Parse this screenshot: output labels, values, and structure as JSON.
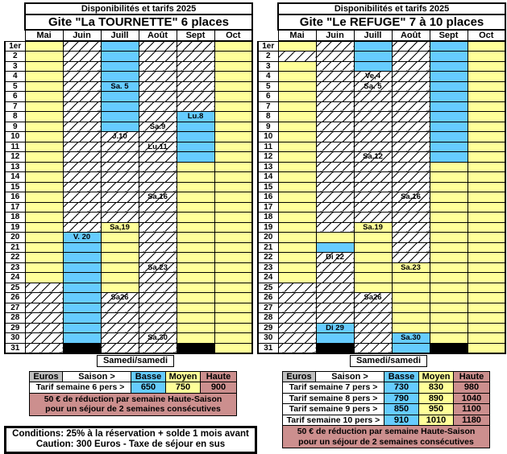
{
  "months": [
    "Mai",
    "Juin",
    "Juill",
    "Août",
    "Sept",
    "Oct"
  ],
  "day_labels": [
    "1er",
    "2",
    "3",
    "4",
    "5",
    "6",
    "7",
    "8",
    "9",
    "10",
    "11",
    "12",
    "13",
    "14",
    "15",
    "16",
    "17",
    "18",
    "19",
    "20",
    "21",
    "22",
    "23",
    "24",
    "25",
    "26",
    "27",
    "28",
    "29",
    "30",
    "31"
  ],
  "legend": {
    "samedi_label": "Samedi/samedi"
  },
  "colors": {
    "yellow": "#FFFF99",
    "blue": "#66CCFF",
    "rose": "#CC8F8E",
    "gray": "#C0C0C0",
    "black": "#000000"
  },
  "panels": [
    {
      "title": "Disponibilités et tarifs 2025",
      "subtitle": "Gite \"La TOURNETTE\" 6 places",
      "footer_label": "Samedi/samedi",
      "columns": {
        "Mai": [
          "Y",
          "Y",
          "Y",
          "Y",
          "Y",
          "Y",
          "Y",
          "Y",
          "Y",
          "Y",
          "Y",
          "Y",
          "Y",
          "Y",
          "Y",
          "Y",
          "Y",
          "Y",
          "Y",
          "Y",
          "Y",
          "Y",
          "Y",
          "Y",
          "H",
          "H",
          "H",
          "H",
          "H",
          "H",
          "H"
        ],
        "Juin": [
          "H",
          "H",
          "H",
          "H",
          "H",
          "H",
          "H",
          "H",
          "H",
          "H",
          "H",
          "H",
          "H",
          "H",
          "H",
          "H",
          "H",
          "H",
          "H",
          "B|V. 20",
          "B",
          "B",
          "B",
          "B",
          "B",
          "B",
          "B",
          "B",
          "B",
          "B",
          "K"
        ],
        "Juill": [
          "B",
          "B",
          "B",
          "B",
          "B|Sa. 5",
          "B",
          "B",
          "B",
          "B",
          "H|J.10",
          "H",
          "H",
          "H",
          "H",
          "H",
          "H",
          "H",
          "H",
          "Y|Sa,19",
          "Y",
          "Y",
          "Y",
          "Y",
          "Y",
          "Y",
          "H|Sa26",
          "H",
          "H",
          "H",
          "H",
          "H"
        ],
        "Août": [
          "H",
          "H",
          "H",
          "H",
          "H",
          "H",
          "H",
          "H",
          "H|Sa.9",
          "H",
          "H|Lu.11",
          "H",
          "H",
          "H",
          "H",
          "H|Sa.16",
          "H",
          "H",
          "H",
          "H",
          "H",
          "H",
          "H|Sa.23",
          "H",
          "H",
          "H",
          "H",
          "H",
          "H",
          "H|Sa.30",
          "H"
        ],
        "Sept": [
          "H",
          "H",
          "H",
          "H",
          "H",
          "H",
          "H",
          "B|Lu.8",
          "B",
          "B",
          "B",
          "B",
          "Y",
          "Y",
          "Y",
          "Y",
          "Y",
          "Y",
          "Y",
          "Y",
          "Y",
          "Y",
          "Y",
          "Y",
          "Y",
          "Y",
          "Y",
          "Y",
          "Y",
          "Y",
          "K"
        ],
        "Oct": [
          "Y",
          "Y",
          "Y",
          "Y",
          "Y",
          "Y",
          "Y",
          "Y",
          "Y",
          "Y",
          "Y",
          "Y",
          "Y",
          "Y",
          "Y",
          "Y",
          "Y",
          "Y",
          "Y",
          "Y",
          "Y",
          "Y",
          "Y",
          "Y",
          "Y",
          "Y",
          "Y",
          "Y",
          "Y",
          "Y",
          "Y"
        ]
      },
      "pricing": {
        "euros_label": "Euros",
        "saison_label": "Saison >",
        "season_headers": [
          "Basse",
          "Moyen",
          "Haute"
        ],
        "rows": [
          {
            "label": "Tarif semaine 6 pers >",
            "values": [
              650,
              750,
              900
            ]
          }
        ],
        "note": "50 € de réduction par semaine Haute-Saison pour un séjour de 2 semaines consécutives"
      }
    },
    {
      "title": "Disponibilités et tarifs 2025",
      "subtitle": "Gite \"Le REFUGE\" 7 à 10 places",
      "footer_label": "Samedi/samedi",
      "columns": {
        "Mai": [
          "Y",
          "H",
          "Y",
          "Y",
          "Y",
          "Y",
          "Y",
          "Y",
          "Y",
          "Y",
          "Y",
          "Y",
          "Y",
          "Y",
          "Y",
          "Y",
          "Y",
          "Y",
          "Y",
          "Y",
          "Y",
          "Y",
          "Y",
          "Y",
          "H",
          "H",
          "H",
          "H",
          "H",
          "H",
          "H"
        ],
        "Juin": [
          "H",
          "H",
          "H",
          "H",
          "H",
          "H",
          "H",
          "H",
          "H",
          "H",
          "H",
          "H",
          "H",
          "H",
          "H",
          "H",
          "H",
          "H",
          "H",
          "Y",
          "B",
          "H|Di 22",
          "H",
          "H",
          "H",
          "H",
          "H",
          "H",
          "B|Di 29",
          "B",
          "K"
        ],
        "Juill": [
          "B",
          "B",
          "B",
          "H|Ve,4",
          "H|Sa. 5",
          "H",
          "H",
          "H",
          "H",
          "H",
          "H",
          "H|Sa,12",
          "H",
          "H",
          "H",
          "H",
          "H",
          "H",
          "Y|Sa.19",
          "Y",
          "Y",
          "Y",
          "Y",
          "Y",
          "Y",
          "H|Sa26",
          "H",
          "H",
          "H",
          "H",
          "H"
        ],
        "Août": [
          "H",
          "H",
          "H",
          "H",
          "H",
          "H",
          "H",
          "H",
          "H",
          "H",
          "H",
          "H",
          "H",
          "H",
          "H",
          "H|Sa.16",
          "H",
          "H",
          "H",
          "H",
          "H",
          "H",
          "Y|Sa.23",
          "Y",
          "Y",
          "Y",
          "Y",
          "Y",
          "Y",
          "B|Sa.30",
          "B"
        ],
        "Sept": [
          "B",
          "B",
          "B",
          "B",
          "B",
          "B",
          "B",
          "B",
          "B",
          "B",
          "B",
          "B",
          "Y",
          "Y",
          "Y",
          "Y",
          "Y",
          "Y",
          "Y",
          "Y",
          "Y",
          "Y",
          "Y",
          "Y",
          "Y",
          "Y",
          "Y",
          "Y",
          "Y",
          "Y",
          "K"
        ],
        "Oct": [
          "Y",
          "Y",
          "Y",
          "Y",
          "Y",
          "Y",
          "Y",
          "Y",
          "Y",
          "Y",
          "Y",
          "Y",
          "Y",
          "Y",
          "Y",
          "Y",
          "Y",
          "Y",
          "Y",
          "Y",
          "Y",
          "Y",
          "Y",
          "Y",
          "Y",
          "Y",
          "Y",
          "Y",
          "Y",
          "Y",
          "Y"
        ]
      },
      "pricing": {
        "euros_label": "Euros",
        "saison_label": "Saison >",
        "season_headers": [
          "Basse",
          "Moyen",
          "Haute"
        ],
        "rows": [
          {
            "label": "Tarif semaine 7 pers >",
            "values": [
              730,
              830,
              980
            ]
          },
          {
            "label": "Tarif semaine 8 pers >",
            "values": [
              790,
              890,
              1040
            ]
          },
          {
            "label": "Tarif semaine 9 pers >",
            "values": [
              850,
              950,
              1100
            ]
          },
          {
            "label": "Tarif semaine 10 pers >",
            "values": [
              910,
              1010,
              1180
            ]
          }
        ],
        "note": "50 € de réduction par semaine Haute-Saison pour un séjour de 2 semaines consécutives"
      }
    }
  ],
  "conditions": {
    "line1": "Conditions: 25% à la réservation + solde 1 mois avant",
    "line2": "Caution: 300 Euros   -   Taxe de séjour en sus"
  }
}
